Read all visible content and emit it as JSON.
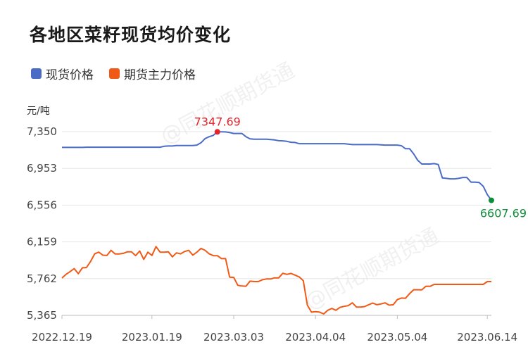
{
  "title": "各地区菜籽现货均价变化",
  "unit": "元/吨",
  "watermark": "@同花顺期货通",
  "colors": {
    "spot": "#4a6cc7",
    "futures": "#f15a16",
    "max_marker": "#e5242b",
    "last_marker": "#0d8f3a",
    "grid": "#e6e6e6"
  },
  "chart_data": {
    "type": "line",
    "ylim": [
      5365,
      7350
    ],
    "yticks": [
      "7,350",
      "6,953",
      "6,556",
      "6,159",
      "5,762",
      "5,365"
    ],
    "ytick_values": [
      7350,
      6953,
      6556,
      6159,
      5762,
      5365
    ],
    "xticks": [
      "2022.12.19",
      "2023.01.19",
      "2023.03.03",
      "2023.04.04",
      "2023.05.04",
      "2023.06.14"
    ],
    "xtick_index": [
      0,
      22,
      42,
      62,
      82,
      104
    ],
    "legend": [
      "现货价格",
      "期货主力价格"
    ],
    "annotations": {
      "max_label": "7347.69",
      "max_index": 38,
      "last_label": "6607.69"
    },
    "series": [
      {
        "name": "现货价格",
        "values": [
          7180,
          7180,
          7180,
          7180,
          7180,
          7180,
          7182,
          7182,
          7182,
          7182,
          7182,
          7182,
          7182,
          7182,
          7182,
          7182,
          7182,
          7182,
          7182,
          7182,
          7182,
          7182,
          7182,
          7182,
          7182,
          7192,
          7195,
          7195,
          7200,
          7200,
          7200,
          7200,
          7200,
          7205,
          7230,
          7275,
          7295,
          7310,
          7347.69,
          7347.69,
          7347,
          7340,
          7330,
          7330,
          7330,
          7295,
          7272,
          7268,
          7268,
          7268,
          7268,
          7265,
          7260,
          7252,
          7250,
          7245,
          7235,
          7233,
          7220,
          7220,
          7220,
          7220,
          7220,
          7220,
          7220,
          7220,
          7220,
          7220,
          7220,
          7220,
          7215,
          7210,
          7210,
          7210,
          7210,
          7210,
          7210,
          7210,
          7208,
          7205,
          7205,
          7205,
          7205,
          7198,
          7165,
          7165,
          7110,
          7040,
          7000,
          7000,
          7000,
          7005,
          6995,
          6850,
          6845,
          6840,
          6840,
          6845,
          6855,
          6855,
          6805,
          6805,
          6800,
          6760,
          6670,
          6607.69
        ]
      },
      {
        "name": "期货主力价格",
        "values": [
          5768,
          5808,
          5838,
          5870,
          5815,
          5878,
          5882,
          5948,
          6030,
          6048,
          6015,
          6012,
          6068,
          6028,
          6028,
          6035,
          6052,
          6052,
          6010,
          6060,
          5970,
          6048,
          6012,
          6108,
          6048,
          6048,
          6052,
          5998,
          6040,
          6030,
          6055,
          6068,
          6015,
          6048,
          6088,
          6068,
          6030,
          6010,
          6010,
          5978,
          5978,
          5778,
          5775,
          5690,
          5682,
          5680,
          5735,
          5730,
          5730,
          5750,
          5758,
          5758,
          5770,
          5770,
          5820,
          5808,
          5818,
          5800,
          5780,
          5740,
          5475,
          5400,
          5405,
          5400,
          5380,
          5420,
          5440,
          5420,
          5452,
          5462,
          5470,
          5500,
          5455,
          5455,
          5460,
          5480,
          5498,
          5480,
          5488,
          5500,
          5475,
          5480,
          5535,
          5552,
          5550,
          5600,
          5642,
          5642,
          5640,
          5680,
          5678,
          5700,
          5700,
          5700,
          5700,
          5700,
          5700,
          5700,
          5700,
          5700,
          5700,
          5700,
          5700,
          5700,
          5730,
          5730
        ]
      }
    ]
  }
}
